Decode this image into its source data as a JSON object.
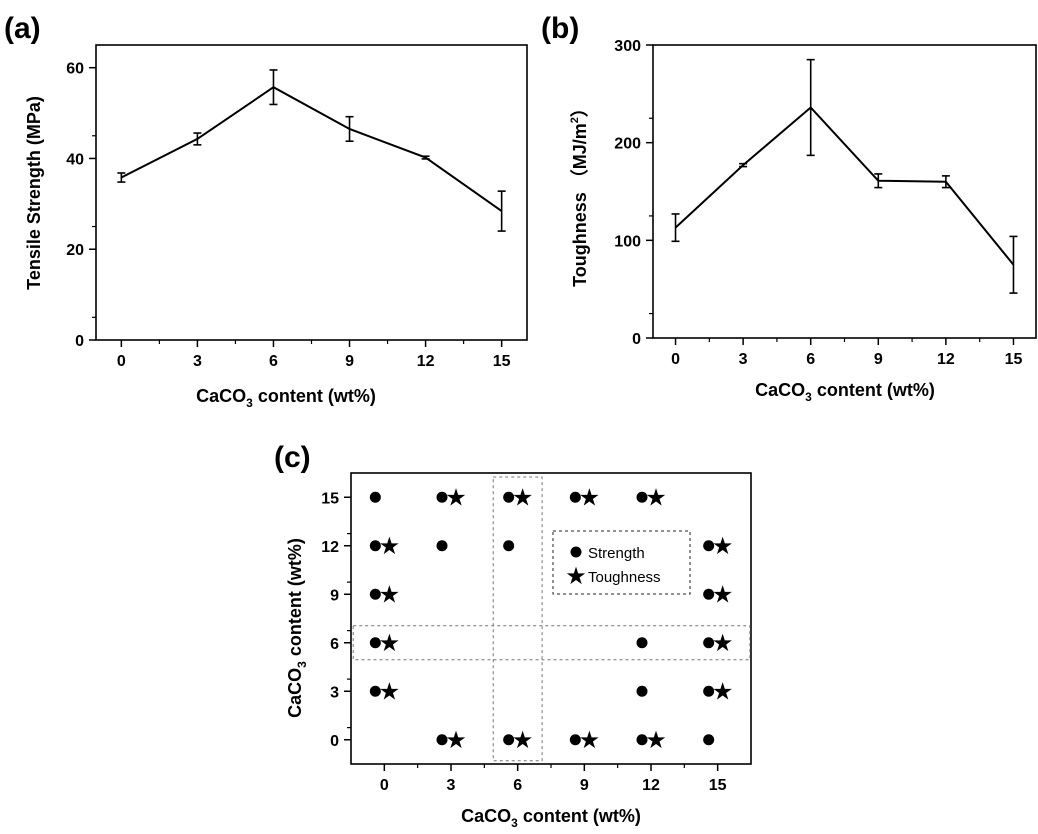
{
  "chart_data": [
    {
      "panel": "(a)",
      "type": "line",
      "xlabel": "CaCO",
      "xlabel_sub": "3",
      "xlabel_rest": " content (wt%)",
      "ylabel": "Tensile Strength (MPa)",
      "x": [
        0,
        3,
        6,
        9,
        12,
        15
      ],
      "y": [
        35.8,
        44.3,
        55.7,
        46.5,
        40.2,
        28.4
      ],
      "error": [
        1.0,
        1.3,
        3.8,
        2.7,
        0.3,
        4.4
      ],
      "xticks": [
        "0",
        "3",
        "6",
        "9",
        "12",
        "15"
      ],
      "yticks": [
        "0",
        "20",
        "40",
        "60"
      ],
      "xlim": [
        -1,
        16
      ],
      "ylim": [
        0,
        65
      ],
      "legend": null
    },
    {
      "panel": "(b)",
      "type": "line",
      "xlabel": "CaCO",
      "xlabel_sub": "3",
      "xlabel_rest": " content (wt%)",
      "ylabel": "Toughness （MJ/m",
      "ylabel_sup": "2",
      "ylabel_rest": "）",
      "x": [
        0,
        3,
        6,
        9,
        12,
        15
      ],
      "y": [
        113,
        177,
        236,
        161,
        160,
        75
      ],
      "error": [
        14,
        1.5,
        49,
        7,
        6,
        29
      ],
      "xticks": [
        "0",
        "3",
        "6",
        "9",
        "12",
        "15"
      ],
      "yticks": [
        "0",
        "100",
        "200",
        "300"
      ],
      "xlim": [
        -1,
        16
      ],
      "ylim": [
        0,
        300
      ],
      "legend": null
    },
    {
      "panel": "(c)",
      "type": "scatter",
      "xlabel": "CaCO",
      "xlabel_sub": "3",
      "xlabel_rest": " content (wt%)",
      "ylabel": "CaCO",
      "ylabel_sub": "3",
      "ylabel_rest": " content (wt%)",
      "xticks": [
        "0",
        "3",
        "6",
        "9",
        "12",
        "15"
      ],
      "yticks": [
        "0",
        "3",
        "6",
        "9",
        "12",
        "15"
      ],
      "xlim": [
        -1.5,
        16.5
      ],
      "ylim": [
        -1.5,
        16.5
      ],
      "legend": {
        "position": "top-right",
        "entries": [
          "Strength",
          "Toughness"
        ]
      },
      "series": [
        {
          "name": "Strength",
          "marker": "circle",
          "points": [
            [
              0,
              15
            ],
            [
              3,
              15
            ],
            [
              6,
              15
            ],
            [
              9,
              15
            ],
            [
              12,
              15
            ],
            [
              0,
              12
            ],
            [
              3,
              12
            ],
            [
              6,
              12
            ],
            [
              15,
              12
            ],
            [
              0,
              9
            ],
            [
              15,
              9
            ],
            [
              0,
              6
            ],
            [
              12,
              6
            ],
            [
              15,
              6
            ],
            [
              0,
              3
            ],
            [
              12,
              3
            ],
            [
              15,
              3
            ],
            [
              3,
              0
            ],
            [
              6,
              0
            ],
            [
              9,
              0
            ],
            [
              12,
              0
            ],
            [
              15,
              0
            ]
          ]
        },
        {
          "name": "Toughness",
          "marker": "star",
          "points": [
            [
              3,
              15
            ],
            [
              6,
              15
            ],
            [
              9,
              15
            ],
            [
              12,
              15
            ],
            [
              0,
              12
            ],
            [
              15,
              12
            ],
            [
              0,
              9
            ],
            [
              15,
              9
            ],
            [
              0,
              6
            ],
            [
              15,
              6
            ],
            [
              0,
              3
            ],
            [
              15,
              3
            ],
            [
              3,
              0
            ],
            [
              6,
              0
            ],
            [
              9,
              0
            ],
            [
              12,
              0
            ]
          ]
        }
      ],
      "highlight_regions": [
        {
          "axis": "x",
          "value": 6
        },
        {
          "axis": "y",
          "value": 6
        }
      ]
    }
  ],
  "colors": {
    "ink": "#000000",
    "background": "#ffffff",
    "highlight_border": "#777777"
  }
}
